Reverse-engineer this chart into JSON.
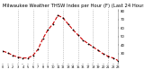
{
  "title": "Milwaukee Weather THSW Index per Hour (F) (Last 24 Hours)",
  "hours": [
    0,
    1,
    2,
    3,
    4,
    5,
    6,
    7,
    8,
    9,
    10,
    11,
    12,
    13,
    14,
    15,
    16,
    17,
    18,
    19,
    20,
    21,
    22,
    23
  ],
  "values": [
    33,
    31,
    28,
    26,
    25,
    25,
    28,
    35,
    48,
    58,
    65,
    75,
    72,
    65,
    58,
    52,
    46,
    42,
    38,
    34,
    30,
    27,
    25,
    22
  ],
  "line_color": "#cc0000",
  "marker_color": "#000000",
  "grid_color": "#999999",
  "bg_color": "#ffffff",
  "text_color": "#000000",
  "ylim_min": 18,
  "ylim_max": 82,
  "ytick_values": [
    30,
    40,
    50,
    60,
    70,
    80
  ],
  "ytick_labels": [
    "30",
    "40",
    "50",
    "60",
    "70",
    "80"
  ],
  "title_fontsize": 3.8,
  "xtick_fontsize": 2.5,
  "ytick_fontsize": 2.8,
  "vgrid_positions": [
    3,
    6,
    9,
    12,
    15,
    18,
    21
  ]
}
